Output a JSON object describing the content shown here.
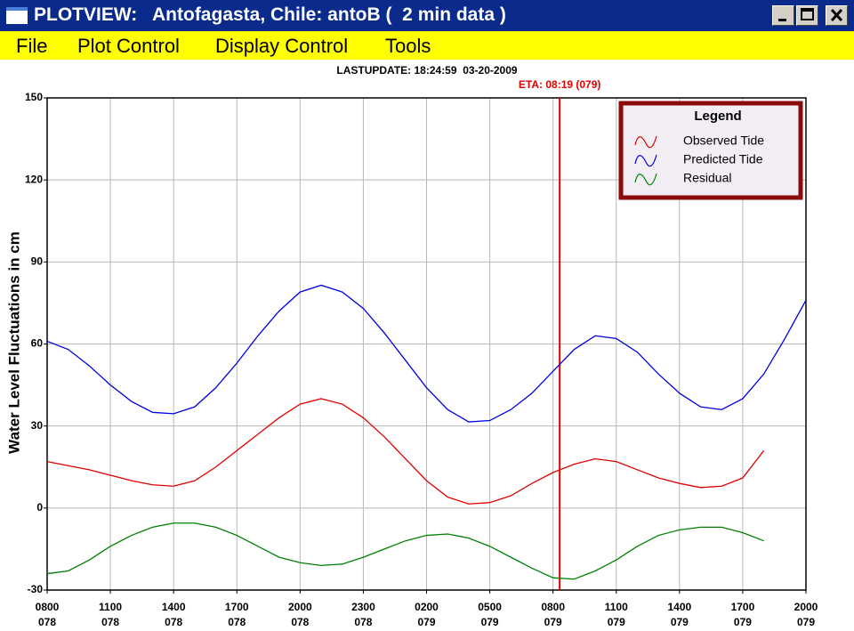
{
  "window": {
    "title": "PLOTVIEW:   Antofagasta, Chile: antoB (  2 min data )"
  },
  "menu": [
    "File",
    "Plot Control",
    "Display Control",
    "Tools"
  ],
  "chart_data": {
    "type": "line",
    "subtitle": "LASTUPDATE: 18:24:59  03-20-2009",
    "eta": {
      "text": "ETA: 08:19 (079)",
      "x": 79.3465,
      "color": "#e00000"
    },
    "y_label": "Water Level Fluctuations in cm",
    "legend": {
      "title": "Legend",
      "position": "upper right"
    },
    "grid": true,
    "xlim": [
      78.3333,
      79.8333
    ],
    "ylim": [
      -30,
      150
    ],
    "yticks": [
      -30,
      0,
      30,
      60,
      90,
      120,
      150
    ],
    "xticks": [
      {
        "value": 78.3333,
        "label": [
          "0800",
          "078"
        ]
      },
      {
        "value": 78.4583,
        "label": [
          "1100",
          "078"
        ]
      },
      {
        "value": 78.5833,
        "label": [
          "1400",
          "078"
        ]
      },
      {
        "value": 78.7083,
        "label": [
          "1700",
          "078"
        ]
      },
      {
        "value": 78.8333,
        "label": [
          "2000",
          "078"
        ]
      },
      {
        "value": 78.9583,
        "label": [
          "2300",
          "078"
        ]
      },
      {
        "value": 79.0833,
        "label": [
          "0200",
          "079"
        ]
      },
      {
        "value": 79.2083,
        "label": [
          "0500",
          "079"
        ]
      },
      {
        "value": 79.3333,
        "label": [
          "0800",
          "079"
        ]
      },
      {
        "value": 79.4583,
        "label": [
          "1100",
          "079"
        ]
      },
      {
        "value": 79.5833,
        "label": [
          "1400",
          "079"
        ]
      },
      {
        "value": 79.7083,
        "label": [
          "1700",
          "079"
        ]
      },
      {
        "value": 79.8333,
        "label": [
          "2000",
          "079"
        ]
      }
    ],
    "x": [
      78.3333,
      78.375,
      78.4167,
      78.4583,
      78.5,
      78.5417,
      78.5833,
      78.625,
      78.6667,
      78.7083,
      78.75,
      78.7917,
      78.8333,
      78.875,
      78.9167,
      78.9583,
      79,
      79.0417,
      79.0833,
      79.125,
      79.1667,
      79.2083,
      79.25,
      79.2917,
      79.3333,
      79.375,
      79.4167,
      79.4583,
      79.5,
      79.5417,
      79.5833,
      79.625,
      79.6667,
      79.7083,
      79.75,
      79.7917,
      79.8333
    ],
    "series": [
      {
        "name": "Observed Tide",
        "color": "#e00000",
        "values": [
          17,
          15.5,
          14,
          12,
          10,
          8.5,
          8,
          10,
          15,
          21,
          27,
          33,
          38,
          40,
          38,
          33,
          26,
          18,
          10,
          4,
          1.5,
          2,
          4.5,
          9,
          13,
          16,
          18,
          17,
          14,
          11,
          9,
          7.5,
          8,
          11,
          21,
          null,
          null
        ]
      },
      {
        "name": "Predicted Tide",
        "color": "#0000e0",
        "values": [
          61,
          58,
          52,
          45,
          39,
          35,
          34.5,
          37,
          44,
          53,
          63,
          72,
          79,
          81.5,
          79,
          73,
          64,
          54,
          44,
          36,
          31.5,
          32,
          36,
          42,
          50,
          58,
          63,
          62,
          57,
          49,
          42,
          37,
          36,
          40,
          49,
          62,
          76
        ]
      },
      {
        "name": "Residual",
        "color": "#008000",
        "values": [
          -24,
          -23,
          -19,
          -14,
          -10,
          -7,
          -5.5,
          -5.5,
          -7,
          -10,
          -14,
          -18,
          -20,
          -21,
          -20.5,
          -18,
          -15,
          -12,
          -10,
          -9.5,
          -11,
          -14,
          -18,
          -22,
          -25.5,
          -26,
          -23,
          -19,
          -14,
          -10,
          -8,
          -7,
          -7,
          -9,
          -12,
          null,
          null
        ]
      }
    ]
  }
}
